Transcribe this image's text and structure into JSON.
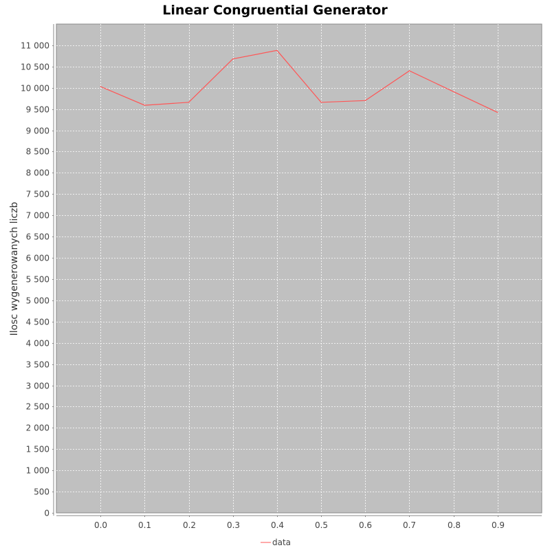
{
  "chart_data": {
    "type": "line",
    "title": "Linear Congruential Generator",
    "xlabel": "",
    "ylabel": "Ilosc wygenerowanych liczb",
    "categories": [
      "0.0",
      "0.1",
      "0.2",
      "0.3",
      "0.4",
      "0.5",
      "0.6",
      "0.7",
      "0.8",
      "0.9"
    ],
    "series": [
      {
        "name": "data",
        "color": "#ff5555",
        "values": [
          10030,
          9590,
          9660,
          10680,
          10880,
          9660,
          9700,
          10400,
          9910,
          9420
        ]
      }
    ],
    "ylim": [
      0,
      11500
    ],
    "xlim": [
      -0.1,
      1.0
    ],
    "y_ticks": [
      0,
      500,
      1000,
      1500,
      2000,
      2500,
      3000,
      3500,
      4000,
      4500,
      5000,
      5500,
      6000,
      6500,
      7000,
      7500,
      8000,
      8500,
      9000,
      9500,
      10000,
      10500,
      11000
    ],
    "y_tick_labels": [
      "0",
      "500",
      "1 000",
      "1 500",
      "2 000",
      "2 500",
      "3 000",
      "3 500",
      "4 000",
      "4 500",
      "5 000",
      "5 500",
      "6 000",
      "6 500",
      "7 000",
      "7 500",
      "8 000",
      "8 500",
      "9 000",
      "9 500",
      "10 000",
      "10 500",
      "11 000"
    ],
    "grid": true,
    "legend": "bottom-center",
    "plot_background": "#c0c0c0",
    "grid_color": "#ffffff"
  }
}
